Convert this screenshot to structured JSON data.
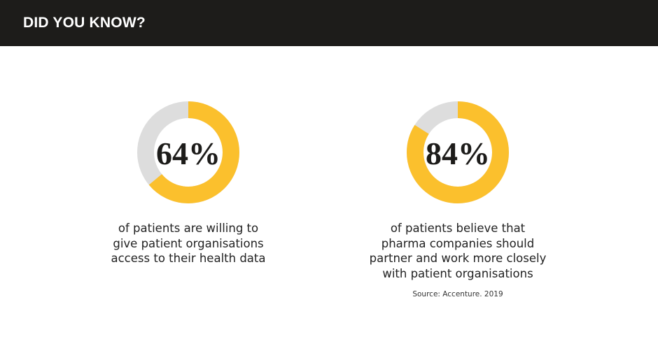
{
  "header": {
    "title": "DID YOU KNOW?"
  },
  "colors": {
    "header_bg": "#1d1c1a",
    "accent": "#fbc02d",
    "track": "#dddddd"
  },
  "chart_data": [
    {
      "type": "pie",
      "variant": "donut",
      "value_label": "64%",
      "values": [
        64,
        36
      ],
      "categories": [
        "",
        ""
      ],
      "caption": [
        "of patients are willing to",
        "give patient organisations",
        "access to their health data"
      ]
    },
    {
      "type": "pie",
      "variant": "donut",
      "value_label": "84%",
      "values": [
        84,
        16
      ],
      "categories": [
        "",
        ""
      ],
      "caption": [
        "of patients believe that",
        "pharma companies should",
        "partner and work more closely",
        "with patient organisations"
      ]
    }
  ],
  "source": "Source: Accenture. 2019"
}
